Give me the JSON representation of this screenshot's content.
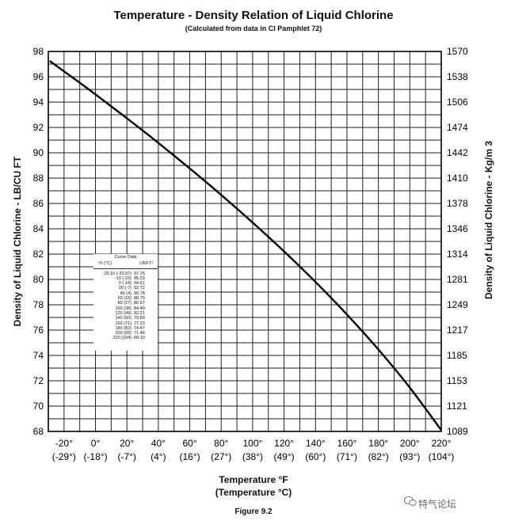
{
  "header": {
    "title": "Temperature - Density Relation of Liquid Chlorine",
    "subtitle": "(Calculated from data in CI Pamphlet 72)"
  },
  "footer": {
    "xlabel_f": "Temperature °F",
    "xlabel_c": "(Temperature °C)",
    "figure": "Figure 9.2",
    "watermark": "特气论坛"
  },
  "chart_data": {
    "type": "line",
    "title": "Temperature - Density Relation of Liquid Chlorine",
    "subtitle": "(Calculated from data in CI Pamphlet 72)",
    "xlabel": "Temperature °F",
    "xlabel_secondary": "(Temperature °C)",
    "ylabel": "Density of Liquid Chlorine - LB/CU FT",
    "ylabel_right": "Density of Liquid Chlorine - Kg/m 3",
    "xlim": [
      -30,
      220
    ],
    "ylim": [
      68,
      98
    ],
    "grid": true,
    "x_ticks": [
      {
        "f": "-20°",
        "c": "(-29°)",
        "v": -20
      },
      {
        "f": "0°",
        "c": "(-18°)",
        "v": 0
      },
      {
        "f": "20°",
        "c": "(-7°)",
        "v": 20
      },
      {
        "f": "40°",
        "c": "(4°)",
        "v": 40
      },
      {
        "f": "60°",
        "c": "(16°)",
        "v": 60
      },
      {
        "f": "80°",
        "c": "(27°)",
        "v": 80
      },
      {
        "f": "100°",
        "c": "(38°)",
        "v": 100
      },
      {
        "f": "120°",
        "c": "(49°)",
        "v": 120
      },
      {
        "f": "140°",
        "c": "(60°)",
        "v": 140
      },
      {
        "f": "160°",
        "c": "(71°)",
        "v": 160
      },
      {
        "f": "180°",
        "c": "(82°)",
        "v": 180
      },
      {
        "f": "200°",
        "c": "(93°)",
        "v": 200
      },
      {
        "f": "220°",
        "c": "(104°)",
        "v": 220
      }
    ],
    "y_ticks_left": [
      "98",
      "96",
      "94",
      "92",
      "90",
      "88",
      "86",
      "84",
      "82",
      "80",
      "78",
      "76",
      "74",
      "72",
      "70",
      "68"
    ],
    "y_ticks_right": [
      "1570",
      "1538",
      "1506",
      "1474",
      "1442",
      "1410",
      "1378",
      "1346",
      "1314",
      "1281",
      "1249",
      "1217",
      "1185",
      "1153",
      "1121",
      "1089"
    ],
    "series": [
      {
        "x": [
          -29.15,
          -10,
          0,
          20,
          40,
          60,
          80,
          100,
          120,
          140,
          160,
          180,
          200,
          220
        ],
        "y": [
          97.25,
          95.53,
          94.61,
          92.72,
          90.78,
          88.76,
          86.67,
          84.49,
          82.21,
          79.8,
          77.23,
          74.47,
          71.46,
          68.1
        ]
      }
    ],
    "table": {
      "title": "Curve Data",
      "col1_header": "°F (°C)",
      "col2_header": "LB/FT³",
      "rows": [
        [
          "-29.15 (-33.97)",
          "97.25"
        ],
        [
          "-10 (-23)",
          "95.53"
        ],
        [
          "0 (-18)",
          "94.61"
        ],
        [
          "20 (-7)",
          "92.72"
        ],
        [
          "40 (4)",
          "90.78"
        ],
        [
          "60 (16)",
          "88.76"
        ],
        [
          "80 (27)",
          "86.67"
        ],
        [
          "100 (38)",
          "84.49"
        ],
        [
          "120 (49)",
          "82.21"
        ],
        [
          "140 (60)",
          "79.80"
        ],
        [
          "160 (71)",
          "77.23"
        ],
        [
          "180 (82)",
          "74.47"
        ],
        [
          "200 (93)",
          "71.46"
        ],
        [
          "220 (104)",
          "68.10"
        ]
      ]
    }
  }
}
